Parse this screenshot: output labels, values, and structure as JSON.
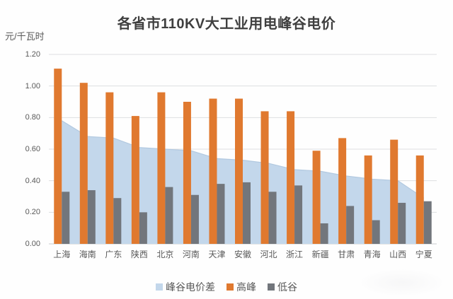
{
  "chart_data": {
    "type": "bar",
    "subtype": "area-bar-combo",
    "title": "各省市110KV大工业用电峰谷电价",
    "ylabel": "元/千瓦时",
    "xlabel": "",
    "categories": [
      "上海",
      "海南",
      "广东",
      "陕西",
      "北京",
      "河南",
      "天津",
      "安徽",
      "河北",
      "浙江",
      "新疆",
      "甘肃",
      "青海",
      "山西",
      "宁夏"
    ],
    "series": [
      {
        "name": "峰谷电价差",
        "type": "area",
        "color": "#c3d7eb",
        "edge_color": "#b2c9e0",
        "values": [
          0.78,
          0.68,
          0.67,
          0.61,
          0.6,
          0.59,
          0.54,
          0.53,
          0.51,
          0.47,
          0.46,
          0.43,
          0.41,
          0.4,
          0.29
        ]
      },
      {
        "name": "高峰",
        "type": "bar",
        "color": "#e0792f",
        "values": [
          1.11,
          1.02,
          0.96,
          0.81,
          0.96,
          0.9,
          0.92,
          0.92,
          0.84,
          0.84,
          0.59,
          0.67,
          0.56,
          0.66,
          0.56
        ]
      },
      {
        "name": "低谷",
        "type": "bar",
        "color": "#72767c",
        "values": [
          0.33,
          0.34,
          0.29,
          0.2,
          0.36,
          0.31,
          0.38,
          0.39,
          0.33,
          0.37,
          0.13,
          0.24,
          0.15,
          0.26,
          0.27
        ]
      }
    ],
    "ylim": [
      0,
      1.2
    ],
    "ytick_step": 0.2,
    "ytick_labels": [
      "0.00",
      "0.20",
      "0.40",
      "0.60",
      "0.80",
      "1.00",
      "1.20"
    ],
    "grid": true,
    "legend_position": "bottom",
    "colors": {
      "background": "#fefefe",
      "gridline": "#dddfe1",
      "axis_line": "#c9ccce",
      "title_text": "#3f3f3f",
      "axis_text": "#595959"
    }
  }
}
